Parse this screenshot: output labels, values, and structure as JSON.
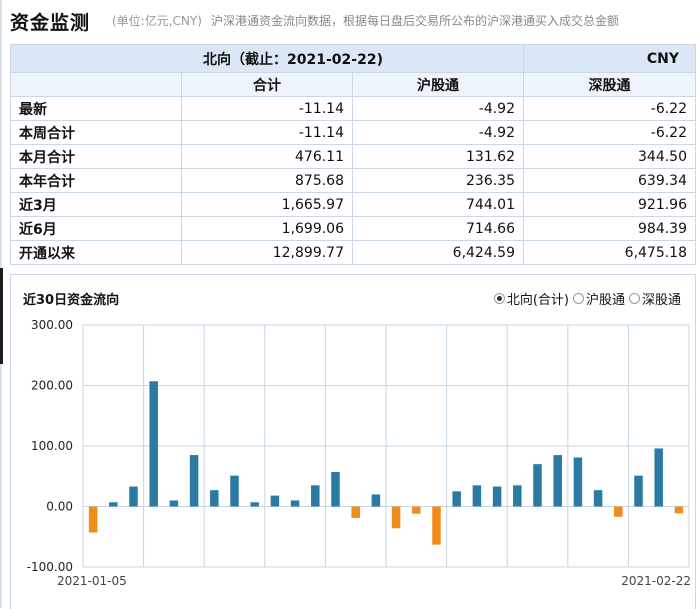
{
  "header": {
    "title": "资金监测",
    "unit": "(单位:亿元,CNY)",
    "description": "沪深港通资金流向数据，根据每日盘后交易所公布的沪深港通买入成交总金额"
  },
  "table": {
    "caption": "北向（截止：2021-02-22)",
    "currency": "CNY",
    "columns": [
      "合计",
      "沪股通",
      "深股通"
    ],
    "rows": [
      {
        "label": "最新",
        "values": [
          "-11.14",
          "-4.92",
          "-6.22"
        ]
      },
      {
        "label": "本周合计",
        "values": [
          "-11.14",
          "-4.92",
          "-6.22"
        ]
      },
      {
        "label": "本月合计",
        "values": [
          "476.11",
          "131.62",
          "344.50"
        ]
      },
      {
        "label": "本年合计",
        "values": [
          "875.68",
          "236.35",
          "639.34"
        ]
      },
      {
        "label": "近3月",
        "values": [
          "1,665.97",
          "744.01",
          "921.96"
        ]
      },
      {
        "label": "近6月",
        "values": [
          "1,699.06",
          "714.66",
          "984.39"
        ]
      },
      {
        "label": "开通以来",
        "values": [
          "12,899.77",
          "6,424.59",
          "6,475.18"
        ]
      }
    ]
  },
  "chart_section": {
    "title": "近30日资金流向",
    "radio_options": [
      {
        "label": "北向(合计)",
        "selected": true
      },
      {
        "label": "沪股通",
        "selected": false
      },
      {
        "label": "深股通",
        "selected": false
      }
    ]
  },
  "chart_data": {
    "type": "bar",
    "title": "近30日资金流向",
    "ylim": [
      -100,
      300
    ],
    "yticks": [
      "300.00",
      "200.00",
      "100.00",
      "0.00",
      "-100.00"
    ],
    "x_start_label": "2021-01-05",
    "x_end_label": "2021-02-22",
    "grid": true,
    "colors": {
      "positive": "#2a7aa4",
      "negative": "#f08c1e",
      "grid": "#c6d6e6"
    },
    "values": [
      -43,
      7,
      33,
      207,
      10,
      85,
      27,
      51,
      7,
      18,
      10,
      35,
      57,
      -19,
      20,
      -36,
      -12,
      -63,
      25,
      35,
      33,
      35,
      70,
      85,
      81,
      27,
      -17,
      51,
      96,
      -11.14
    ]
  }
}
